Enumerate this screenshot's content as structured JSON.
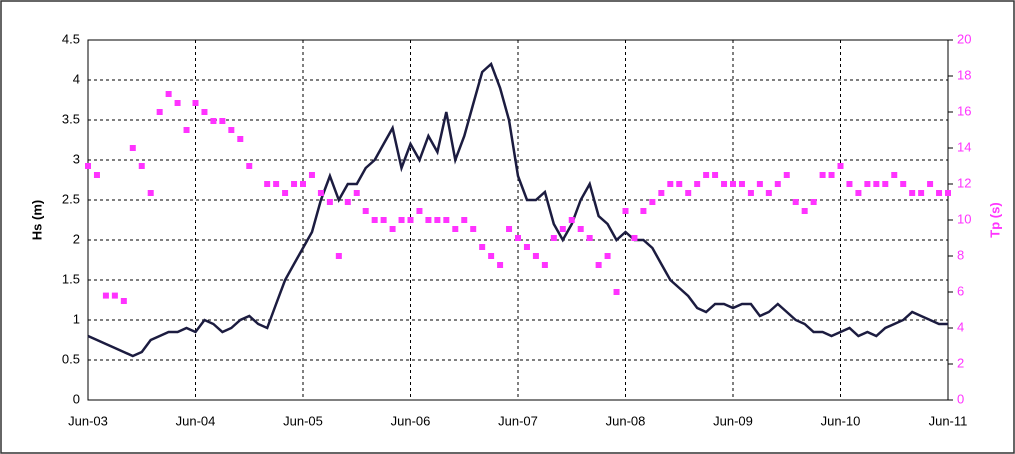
{
  "chart_data": {
    "type": "line",
    "x": [
      "Jun-03",
      "Jul-03",
      "Aug-03",
      "Sep-03",
      "Oct-03",
      "Nov-03",
      "Dec-03",
      "Jan-04",
      "Feb-04",
      "Mar-04",
      "Apr-04",
      "May-04",
      "Jun-04",
      "Jul-04",
      "Aug-04",
      "Sep-04",
      "Oct-04",
      "Nov-04",
      "Dec-04",
      "Jan-05",
      "Feb-05",
      "Mar-05",
      "Apr-05",
      "May-05",
      "Jun-05",
      "Jul-05",
      "Aug-05",
      "Sep-05",
      "Oct-05",
      "Nov-05",
      "Dec-05",
      "Jan-06",
      "Feb-06",
      "Mar-06",
      "Apr-06",
      "May-06",
      "Jun-06",
      "Jul-06",
      "Aug-06",
      "Sep-06",
      "Oct-06",
      "Nov-06",
      "Dec-06",
      "Jan-07",
      "Feb-07",
      "Mar-07",
      "Apr-07",
      "May-07",
      "Jun-07",
      "Jul-07",
      "Aug-07",
      "Sep-07",
      "Oct-07",
      "Nov-07",
      "Dec-07",
      "Jan-08",
      "Feb-08",
      "Mar-08",
      "Apr-08",
      "May-08",
      "Jun-08",
      "Jul-08",
      "Aug-08",
      "Sep-08",
      "Oct-08",
      "Nov-08",
      "Dec-08",
      "Jan-09",
      "Feb-09",
      "Mar-09",
      "Apr-09",
      "May-09",
      "Jun-09",
      "Jul-09",
      "Aug-09",
      "Sep-09",
      "Oct-09",
      "Nov-09",
      "Dec-09",
      "Jan-10",
      "Feb-10",
      "Mar-10",
      "Apr-10",
      "May-10",
      "Jun-10",
      "Jul-10",
      "Aug-10",
      "Sep-10",
      "Oct-10",
      "Nov-10",
      "Dec-10",
      "Jan-11",
      "Feb-11",
      "Mar-11",
      "Apr-11",
      "May-11",
      "Jun-11"
    ],
    "series": [
      {
        "name": "Hs (m)",
        "color": "#1c1c40",
        "values": [
          0.8,
          0.75,
          0.7,
          0.65,
          0.6,
          0.55,
          0.6,
          0.75,
          0.8,
          0.85,
          0.85,
          0.9,
          0.85,
          1.0,
          0.95,
          0.85,
          0.9,
          1.0,
          1.05,
          0.95,
          0.9,
          1.2,
          1.5,
          1.7,
          1.9,
          2.1,
          2.5,
          2.8,
          2.5,
          2.7,
          2.7,
          2.9,
          3.0,
          3.2,
          3.4,
          2.9,
          3.2,
          3.0,
          3.3,
          3.1,
          3.6,
          3.0,
          3.3,
          3.7,
          4.1,
          4.2,
          3.9,
          3.5,
          2.8,
          2.5,
          2.5,
          2.6,
          2.2,
          2.0,
          2.2,
          2.5,
          2.7,
          2.3,
          2.2,
          2.0,
          2.1,
          2.0,
          2.0,
          1.9,
          1.7,
          1.5,
          1.4,
          1.3,
          1.15,
          1.1,
          1.2,
          1.2,
          1.15,
          1.2,
          1.2,
          1.05,
          1.1,
          1.2,
          1.1,
          1.0,
          0.95,
          0.85,
          0.85,
          0.8,
          0.85,
          0.9,
          0.8,
          0.85,
          0.8,
          0.9,
          0.95,
          1.0,
          1.1,
          1.05,
          1.0,
          0.95,
          0.95
        ]
      },
      {
        "name": "Tp (s)",
        "color": "#ff33ff",
        "axis": "y2",
        "values": [
          13,
          12.5,
          5.8,
          5.8,
          5.5,
          14,
          13,
          11.5,
          16,
          17,
          16.5,
          15,
          16.5,
          16,
          15.5,
          15.5,
          15,
          14.5,
          13,
          null,
          12,
          12,
          11.5,
          12,
          12,
          12.5,
          11.5,
          11,
          8,
          11,
          11.5,
          10.5,
          10,
          10,
          9.5,
          10,
          10,
          10.5,
          10,
          10,
          10,
          9.5,
          10,
          9.5,
          8.5,
          8,
          7.5,
          9.5,
          9,
          8.5,
          8,
          7.5,
          9,
          9.5,
          10,
          9.5,
          9,
          7.5,
          8,
          6,
          10.5,
          9,
          10.5,
          11,
          11.5,
          12,
          12,
          11.5,
          12,
          12.5,
          12.5,
          12,
          12,
          12,
          11.5,
          12,
          11.5,
          12,
          12.5,
          11,
          10.5,
          11,
          12.5,
          12.5,
          13,
          12,
          11.5,
          12,
          12,
          12,
          12.5,
          12,
          11.5,
          11.5,
          12,
          11.5,
          11.5
        ]
      }
    ],
    "ylabel": "Hs (m)",
    "y2label": "Tp (s)",
    "xticks": [
      "Jun-03",
      "Jun-04",
      "Jun-05",
      "Jun-06",
      "Jun-07",
      "Jun-08",
      "Jun-09",
      "Jun-10",
      "Jun-11"
    ],
    "ylim": [
      0,
      4.5
    ],
    "yticks": [
      0,
      0.5,
      1,
      1.5,
      2,
      2.5,
      3,
      3.5,
      4,
      4.5
    ],
    "y2lim": [
      0,
      20
    ],
    "y2ticks": [
      0,
      2,
      4,
      6,
      8,
      10,
      12,
      14,
      16,
      18,
      20
    ],
    "grid": true
  }
}
